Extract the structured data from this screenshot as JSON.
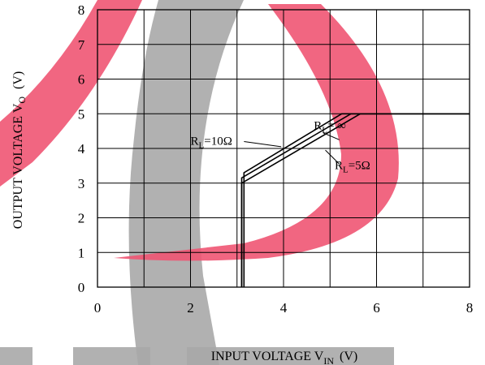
{
  "chart_data": {
    "type": "line",
    "title": "",
    "xlabel": {
      "main": "INPUT VOLTAGE V",
      "sub": "IN",
      "unit": "(V)"
    },
    "ylabel": {
      "main": "OUTPUT VOLTAGE V",
      "sub": "O",
      "unit": "(V)"
    },
    "xlim": [
      0,
      8
    ],
    "ylim": [
      0,
      8
    ],
    "x_ticks": [
      0,
      2,
      4,
      6,
      8
    ],
    "y_ticks": [
      0,
      1,
      2,
      3,
      4,
      5,
      6,
      7,
      8
    ],
    "grid": true,
    "series": [
      {
        "points": [
          [
            3.1,
            0
          ],
          [
            3.1,
            3.0
          ],
          [
            5.65,
            5.0
          ],
          [
            8,
            5.0
          ]
        ]
      },
      {
        "points": [
          [
            3.1,
            0
          ],
          [
            3.1,
            3.15
          ],
          [
            5.45,
            5.0
          ],
          [
            8,
            5.0
          ]
        ]
      },
      {
        "points": [
          [
            3.15,
            0
          ],
          [
            3.15,
            3.3
          ],
          [
            5.25,
            5.0
          ],
          [
            8,
            5.0
          ]
        ]
      }
    ],
    "annotations": [
      {
        "main": "R",
        "sub": "L",
        "rest": "= ∞",
        "at": [
          4.65,
          4.55
        ]
      },
      {
        "main": "R",
        "sub": "L",
        "rest": "=10Ω",
        "at": [
          2.0,
          4.1
        ]
      },
      {
        "main": "R",
        "sub": "L",
        "rest": "=5Ω",
        "at": [
          5.1,
          3.4
        ]
      }
    ]
  }
}
